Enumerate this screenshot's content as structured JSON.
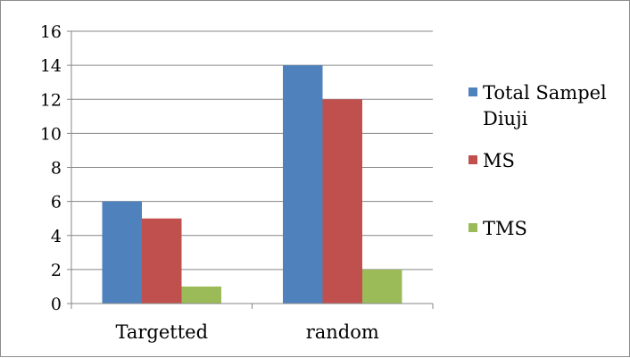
{
  "chart_data": {
    "type": "bar",
    "title": "",
    "xlabel": "",
    "ylabel": "",
    "categories": [
      "Targetted",
      "random"
    ],
    "series": [
      {
        "name": "Total Sampel Diuji",
        "name_lines": [
          "Total Sampel",
          "Diuji"
        ],
        "color": "#4f81bd",
        "values": [
          6,
          14
        ]
      },
      {
        "name": "MS",
        "name_lines": [
          "MS"
        ],
        "color": "#c0504d",
        "values": [
          5,
          12
        ]
      },
      {
        "name": "TMS",
        "name_lines": [
          "TMS"
        ],
        "color": "#9bbb59",
        "values": [
          1,
          2
        ]
      }
    ],
    "ylim": [
      0,
      16
    ],
    "yticks": [
      "0",
      "2",
      "4",
      "6",
      "8",
      "10",
      "12",
      "14",
      "16"
    ],
    "grid": true,
    "legend_position": "right"
  }
}
